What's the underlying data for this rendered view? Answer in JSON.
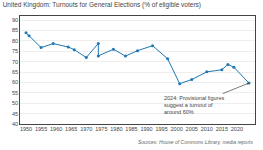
{
  "chart_data": {
    "type": "line",
    "title": "United Kingdom: Turnouts for General Elections (% of eligible voters)",
    "x": [
      1950,
      1951,
      1955,
      1959,
      1964,
      1966,
      1970,
      1974,
      1974,
      1979,
      1983,
      1987,
      1992,
      1997,
      2001,
      2005,
      2010,
      2015,
      2017,
      2019,
      2024
    ],
    "values": [
      83.9,
      82.5,
      76.8,
      78.7,
      77.1,
      75.8,
      72.0,
      78.8,
      72.8,
      76.0,
      72.7,
      75.3,
      77.7,
      71.4,
      59.4,
      61.4,
      65.1,
      66.1,
      68.7,
      67.3,
      59.7
    ],
    "annotations": [
      {
        "text": "2024: Provisional figures\nsuggest a turnout of\naround 60%",
        "x": 2024,
        "y": 59.7
      }
    ],
    "source": "Sources: House of Commons Library, media reports",
    "xlim": [
      1948,
      2026
    ],
    "ylim": [
      40,
      92
    ],
    "xticks": [
      1950,
      1955,
      1960,
      1965,
      1970,
      1975,
      1980,
      1985,
      1990,
      1995,
      2000,
      2005,
      2010,
      2015,
      2020
    ],
    "yticks": [
      40,
      45,
      50,
      55,
      60,
      65,
      70,
      75,
      80,
      85,
      90
    ],
    "grid": "y",
    "marker": "circle"
  }
}
